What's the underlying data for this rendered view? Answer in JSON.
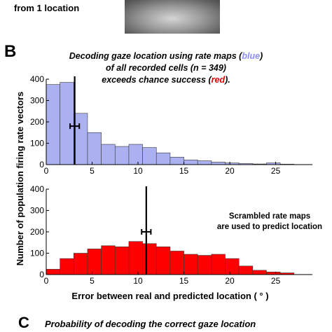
{
  "figure": {
    "top_label": "from 1 location",
    "panel_b_letter": "B",
    "panel_c_letter": "C",
    "title_lines": [
      [
        {
          "text": "Decoding gaze location using rate maps (",
          "color": "#000000"
        },
        {
          "text": "blue",
          "color": "#8c8cff"
        },
        {
          "text": ")",
          "color": "#000000"
        }
      ],
      [
        {
          "text": "of all recorded cells (n = 349)",
          "color": "#000000"
        }
      ],
      [
        {
          "text": "exceeds chance success (",
          "color": "#000000"
        },
        {
          "text": "red",
          "color": "#e00000"
        },
        {
          "text": ").",
          "color": "#000000"
        }
      ]
    ],
    "shared_ylabel": "Number of population firing rate vectors",
    "shared_xlabel": "Error between real and predicted location ( ° )",
    "annotation_lines": [
      "Scrambled rate maps",
      "are used to predict location"
    ],
    "panel_c_title": "Probability of decoding the correct gaze location"
  },
  "chart_data": [
    {
      "type": "bar",
      "name": "blue",
      "color": "#aab0f0",
      "bin_width": 1.5,
      "bin_starts": [
        0,
        1.5,
        3,
        4.5,
        6,
        7.5,
        9,
        10.5,
        12,
        13.5,
        15,
        16.5,
        18,
        19.5,
        21,
        22.5,
        24,
        25.5,
        27
      ],
      "values": [
        375,
        385,
        240,
        150,
        95,
        85,
        95,
        80,
        55,
        35,
        22,
        18,
        12,
        8,
        5,
        3,
        8,
        2,
        0
      ],
      "xlim": [
        0,
        29
      ],
      "ylim": [
        0,
        400
      ],
      "xticks": [
        "0",
        "5",
        "10",
        "15",
        "20",
        "25"
      ],
      "xtick_values": [
        0,
        5,
        10,
        15,
        20,
        25
      ],
      "yticks": [
        "0",
        "100",
        "200",
        "300",
        "400"
      ],
      "ytick_values": [
        0,
        100,
        200,
        300,
        400
      ],
      "mean_marker": {
        "x": 3.1,
        "y": 180,
        "err": 0.35
      }
    },
    {
      "type": "bar",
      "name": "red",
      "color": "#ff0000",
      "bin_width": 1.5,
      "bin_starts": [
        0,
        1.5,
        3,
        4.5,
        6,
        7.5,
        9,
        10.5,
        12,
        13.5,
        15,
        16.5,
        18,
        19.5,
        21,
        22.5,
        24,
        25.5,
        27
      ],
      "values": [
        25,
        75,
        100,
        120,
        135,
        130,
        155,
        145,
        130,
        110,
        95,
        90,
        95,
        75,
        40,
        20,
        12,
        8,
        0
      ],
      "xlim": [
        0,
        29
      ],
      "ylim": [
        0,
        400
      ],
      "xticks": [
        "0",
        "5",
        "10",
        "15",
        "20",
        "25"
      ],
      "xtick_values": [
        0,
        5,
        10,
        15,
        20,
        25
      ],
      "yticks": [
        "0",
        "100",
        "200",
        "300",
        "400"
      ],
      "ytick_values": [
        0,
        100,
        200,
        300,
        400
      ],
      "mean_marker": {
        "x": 10.9,
        "y": 200,
        "err": 0.35
      }
    }
  ]
}
